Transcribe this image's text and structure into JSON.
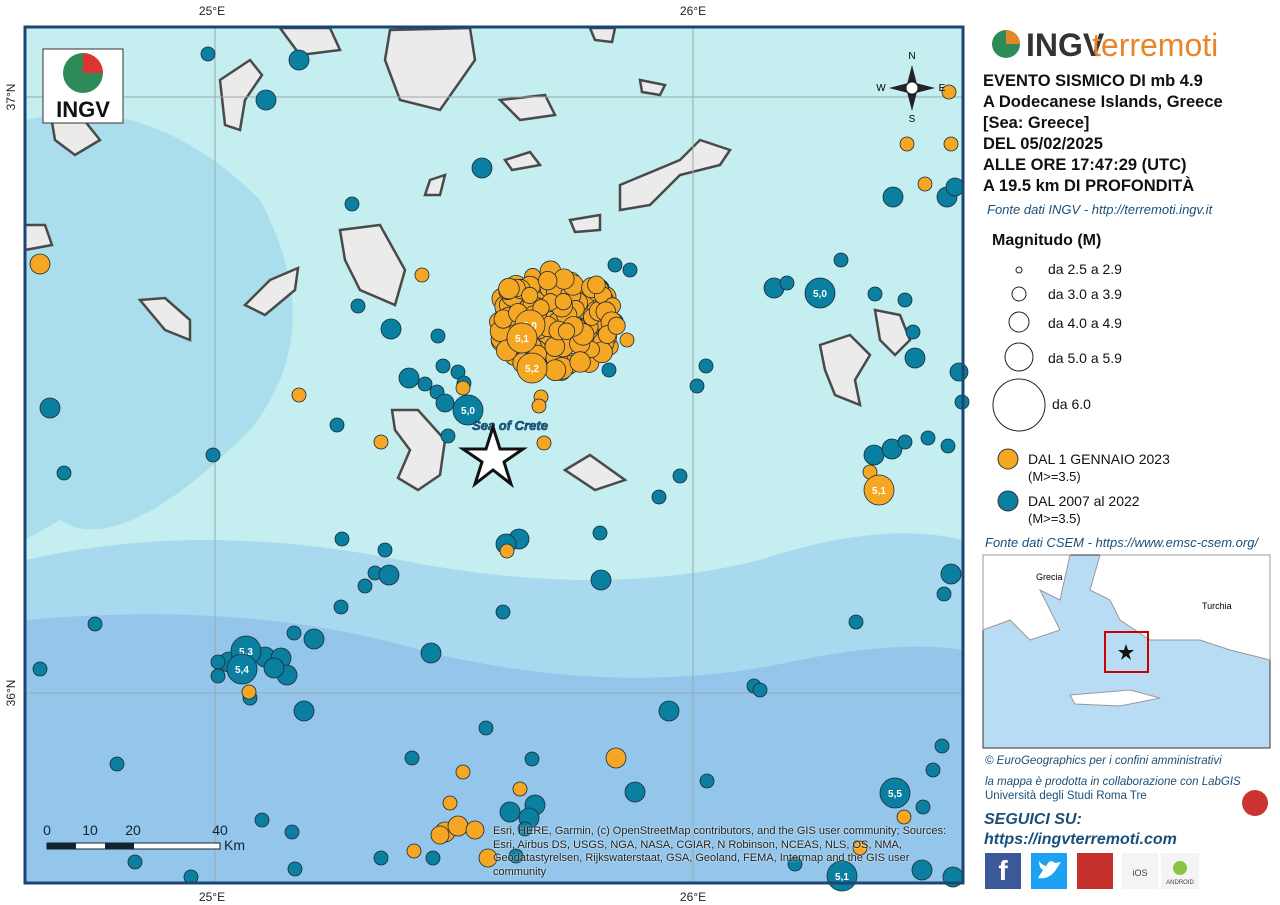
{
  "map": {
    "lon_labels": [
      "25°E",
      "26°E"
    ],
    "lat_labels": [
      "37°N",
      "36°N"
    ],
    "logo_text": "INGV",
    "sea_label": "Sea of Crete",
    "compass": [
      "N",
      "W",
      "E",
      "S"
    ],
    "scale_labels": [
      "0",
      "10",
      "20",
      "40"
    ],
    "scale_unit": "Km",
    "magnitude_labels": [
      "5,0",
      "5,1",
      "5,2",
      "5,0",
      "5,0",
      "5,3",
      "5,4",
      "5,1",
      "5,5",
      "5,1"
    ],
    "attribution": "Esri, HERE, Garmin, (c) OpenStreetMap contributors, and the GIS user community; Sources: Esri, Airbus DS, USGS, NGA, NASA, CGIAR, N Robinson, NCEAS, NLS, OS, NMA, Geodatastyrelsen, Rijkswaterstaat, GSA, Geoland, FEMA, Intermap and the GIS user community"
  },
  "sidebar": {
    "brand": [
      "INGV",
      "terremoti"
    ],
    "event_lines": [
      "EVENTO SISMICO DI mb 4.9",
      "A Dodecanese Islands, Greece",
      "[Sea: Greece]",
      "DEL 05/02/2025",
      "ALLE ORE 17:47:29 (UTC)",
      "A 19.5 km DI PROFONDITÀ"
    ],
    "source_ingv": "Fonte dati INGV - http://terremoti.ingv.it",
    "legend_title": "Magnitudo (M)",
    "magnitude_classes": [
      "da 2.5 a 2.9",
      "da 3.0 a 3.9",
      "da 4.0 a 4.9",
      "da 5.0 a 5.9",
      "da 6.0"
    ],
    "period_legend": [
      {
        "label": "DAL 1 GENNAIO 2023",
        "note": "(M>=3.5)",
        "color": "#f5a623"
      },
      {
        "label": "DAL 2007 al 2022",
        "note": "(M>=3.5)",
        "color": "#0b7fa0"
      }
    ],
    "source_csem": "Fonte dati CSEM - https://www.emsc-csem.org/",
    "inset_labels": [
      "Grecia",
      "Turchia"
    ],
    "credits": [
      "© EuroGeographics per i confini amministrativi",
      "la mappa è prodotta in collaborazione con LabGIS",
      "Università degli Studi Roma Tre"
    ],
    "follow_title": "SEGUICI SU:",
    "follow_url": "https://ingvterremoti.com",
    "app_labels": [
      "iOS",
      "ANDROID"
    ]
  }
}
